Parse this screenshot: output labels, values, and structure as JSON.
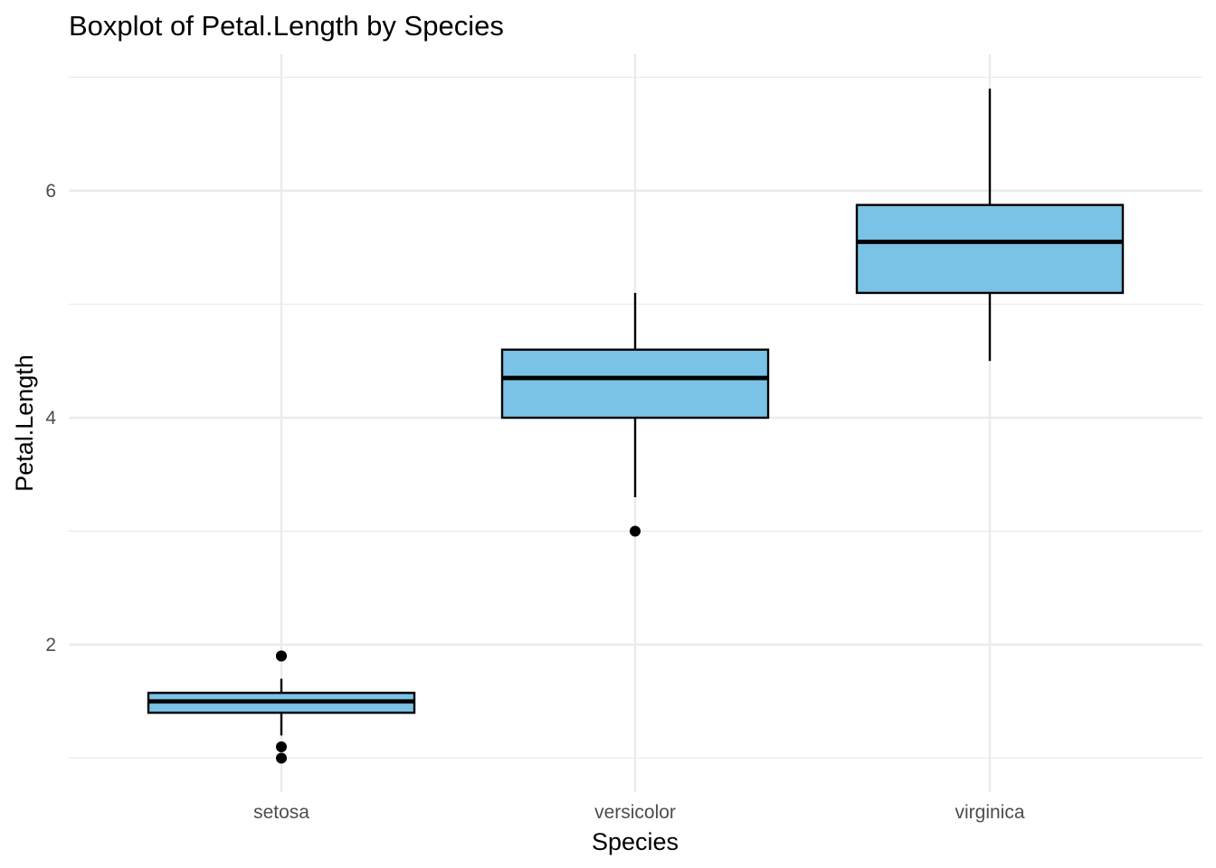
{
  "chart_data": {
    "type": "boxplot",
    "title": "Boxplot of Petal.Length by Species",
    "xlabel": "Species",
    "ylabel": "Petal.Length",
    "ylim": [
      0.8,
      7.0
    ],
    "y_ticks": [
      2,
      4,
      6
    ],
    "y_tick_labels": [
      "2",
      "4",
      "6"
    ],
    "categories": [
      "setosa",
      "versicolor",
      "virginica"
    ],
    "grid": true,
    "legend": "none",
    "colors": {
      "box_fill": "#7AC3E6",
      "box_stroke": "#000000",
      "grid": "#EBEBEB",
      "background": "#FFFFFF"
    },
    "boxes": [
      {
        "category": "setosa",
        "whisker_low": 1.2,
        "q1": 1.4,
        "median": 1.5,
        "q3": 1.575,
        "whisker_high": 1.7,
        "outliers": [
          1.0,
          1.1,
          1.9,
          1.9
        ]
      },
      {
        "category": "versicolor",
        "whisker_low": 3.3,
        "q1": 4.0,
        "median": 4.35,
        "q3": 4.6,
        "whisker_high": 5.1,
        "outliers": [
          3.0
        ]
      },
      {
        "category": "virginica",
        "whisker_low": 4.5,
        "q1": 5.1,
        "median": 5.55,
        "q3": 5.875,
        "whisker_high": 6.9,
        "outliers": []
      }
    ]
  }
}
